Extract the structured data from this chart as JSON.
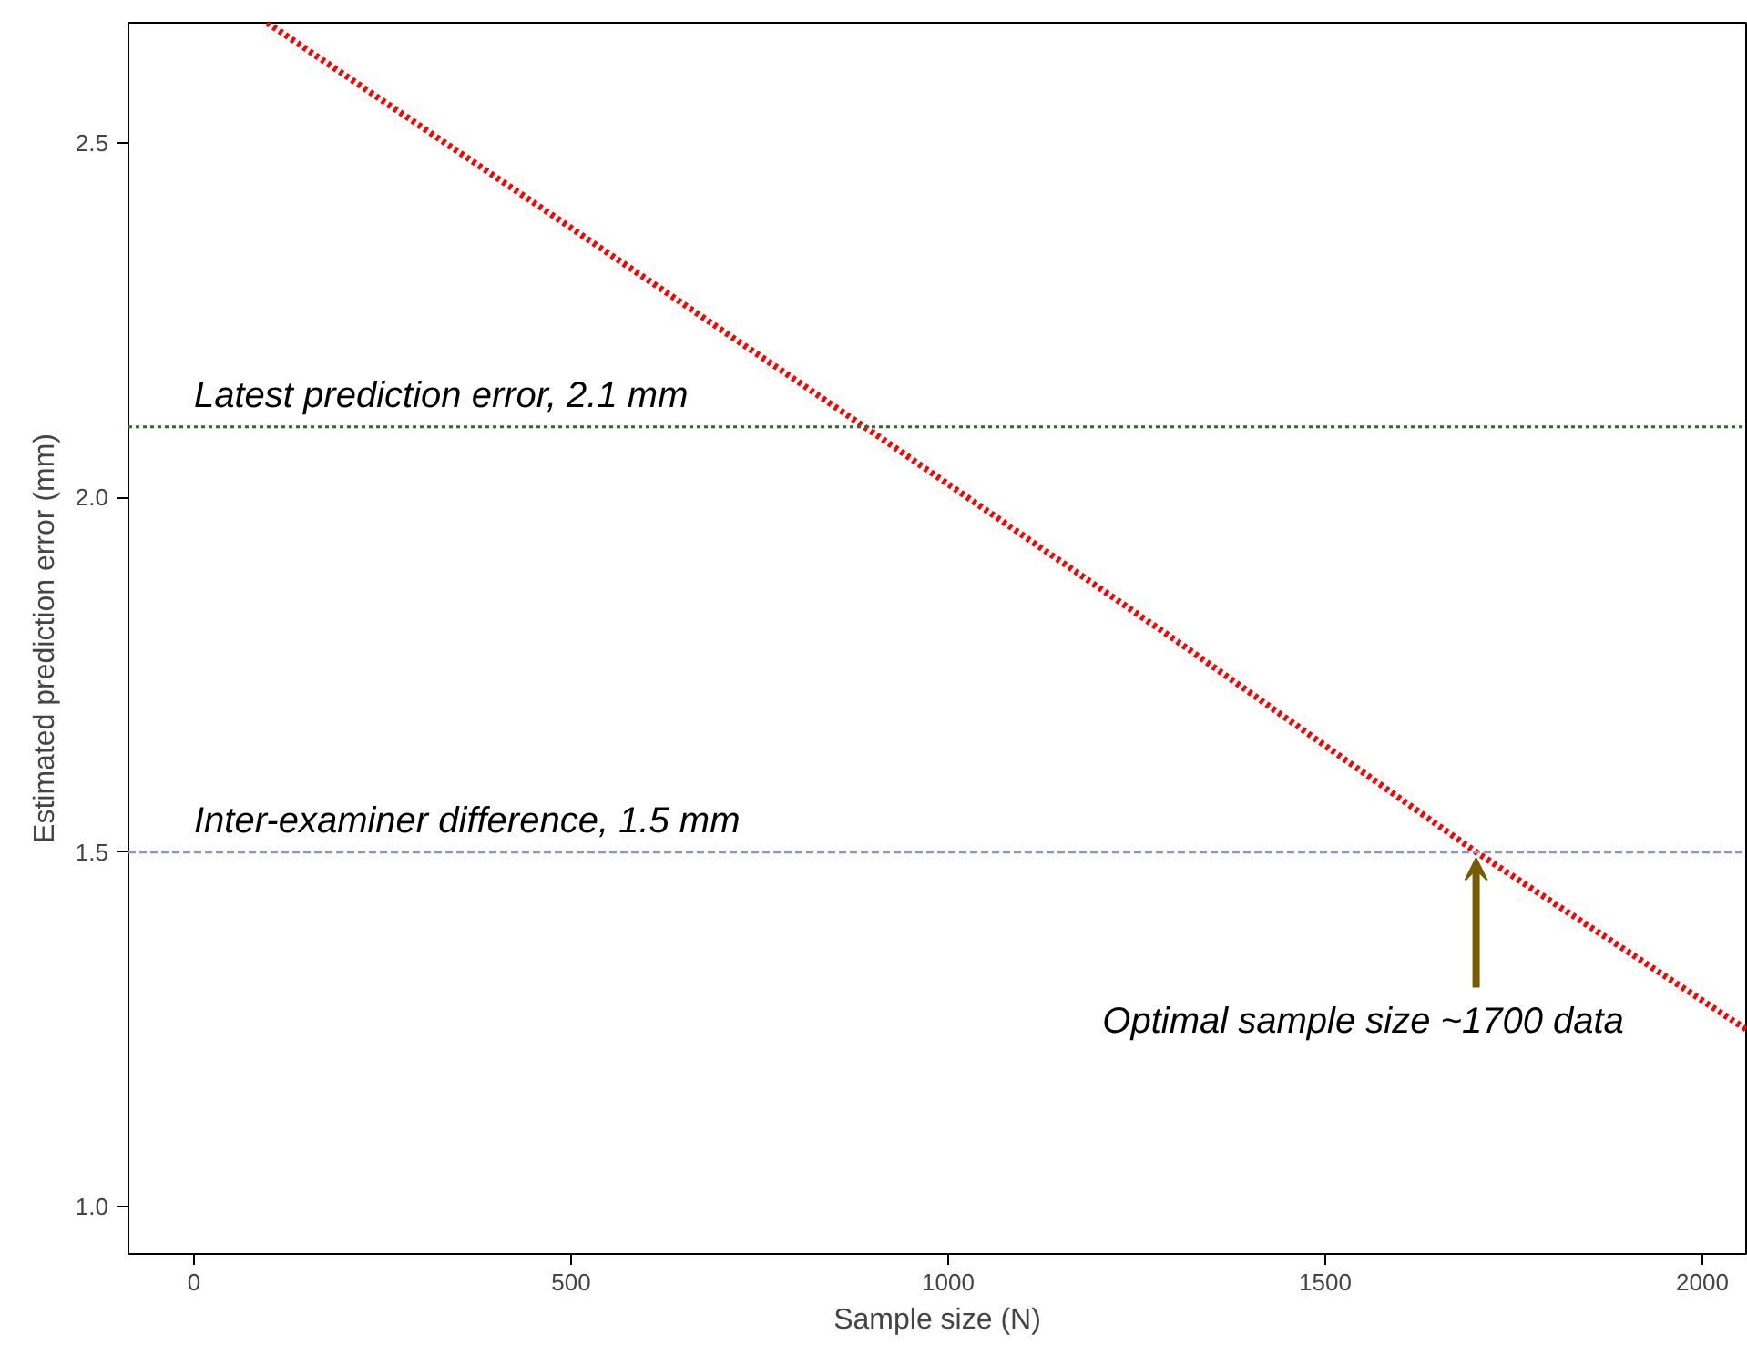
{
  "chart_data": {
    "type": "line",
    "xlabel": "Sample size (N)",
    "ylabel": "Estimated prediction error (mm)",
    "xlim": [
      -87,
      2058
    ],
    "ylim": [
      0.933,
      2.67
    ],
    "xticks": [
      0,
      500,
      1000,
      1500,
      2000
    ],
    "yticks": [
      {
        "value": 1.0,
        "label": "1.0"
      },
      {
        "value": 1.5,
        "label": "1.5"
      },
      {
        "value": 2.0,
        "label": "2.0"
      },
      {
        "value": 2.5,
        "label": "2.5"
      }
    ],
    "series": [
      {
        "color": "#ff0000",
        "line_style": "dotted",
        "x": [
          97,
          466,
          889,
          1300,
          1700,
          2058
        ],
        "values": [
          2.67,
          2.405,
          2.1,
          1.8,
          1.5,
          1.25
        ]
      }
    ],
    "ref_lines": [
      {
        "axis": "y",
        "value": 2.1,
        "label": "Latest prediction error, 2.1 mm",
        "color": "#2e6b2e",
        "line_style": "dotted"
      },
      {
        "axis": "y",
        "value": 1.5,
        "label": "Inter-examiner difference, 1.5 mm",
        "color": "#8a96c8",
        "line_style": "dashed"
      }
    ],
    "annotations": [
      {
        "text": "Optimal sample size ~1700 data",
        "x": 1700,
        "y": 1.5
      }
    ],
    "grid": false,
    "marker": "none"
  }
}
